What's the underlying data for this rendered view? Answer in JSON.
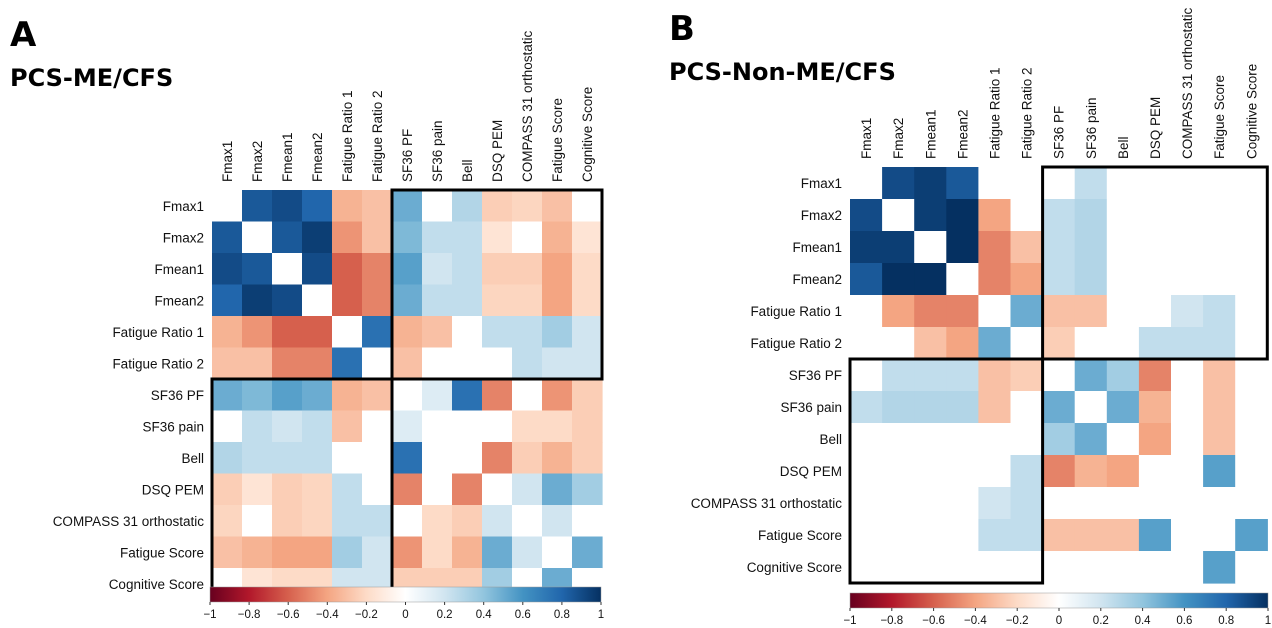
{
  "chart_data": [
    {
      "type": "heatmap",
      "panel": "A",
      "title": "PCS-ME/CFS",
      "labels": [
        "Fmax1",
        "Fmax2",
        "Fmean1",
        "Fmean2",
        "Fatigue Ratio 1",
        "Fatigue Ratio 2",
        "SF36 PF",
        "SF36 pain",
        "Bell",
        "DSQ PEM",
        "COMPASS 31 orthostatic",
        "Fatigue Score",
        "Cognitive Score"
      ],
      "values": [
        [
          0,
          0.85,
          0.9,
          0.8,
          -0.35,
          -0.3,
          0.5,
          0,
          0.3,
          -0.25,
          -0.22,
          -0.3,
          0
        ],
        [
          0.85,
          0,
          0.85,
          0.95,
          -0.45,
          -0.3,
          0.45,
          0.25,
          0.25,
          -0.15,
          0,
          -0.35,
          -0.15
        ],
        [
          0.9,
          0.85,
          0,
          0.9,
          -0.6,
          -0.5,
          0.55,
          0.2,
          0.25,
          -0.25,
          -0.25,
          -0.4,
          -0.2
        ],
        [
          0.8,
          0.95,
          0.9,
          0,
          -0.6,
          -0.5,
          0.5,
          0.25,
          0.25,
          -0.22,
          -0.22,
          -0.4,
          -0.2
        ],
        [
          -0.35,
          -0.45,
          -0.6,
          -0.6,
          0,
          0.75,
          -0.35,
          -0.3,
          0,
          0.25,
          0.25,
          0.35,
          0.2
        ],
        [
          -0.3,
          -0.3,
          -0.5,
          -0.5,
          0.75,
          0,
          -0.3,
          0,
          0,
          0,
          0.25,
          0.2,
          0.2
        ],
        [
          0.5,
          0.45,
          0.55,
          0.5,
          -0.35,
          -0.3,
          0,
          0.15,
          0.75,
          -0.5,
          0,
          -0.45,
          -0.25
        ],
        [
          0,
          0.25,
          0.2,
          0.25,
          -0.3,
          0,
          0.15,
          0,
          0,
          0,
          -0.2,
          -0.2,
          -0.25
        ],
        [
          0.3,
          0.25,
          0.25,
          0.25,
          0,
          0,
          0.75,
          0,
          0,
          -0.5,
          -0.25,
          -0.35,
          -0.25
        ],
        [
          -0.25,
          -0.15,
          -0.25,
          -0.22,
          0.25,
          0,
          -0.5,
          0,
          -0.5,
          0,
          0.2,
          0.5,
          0.35
        ],
        [
          -0.22,
          0,
          -0.25,
          -0.22,
          0.25,
          0.25,
          0,
          -0.2,
          -0.25,
          0.2,
          0,
          0.2,
          0
        ],
        [
          -0.3,
          -0.35,
          -0.4,
          -0.4,
          0.35,
          0.2,
          -0.45,
          -0.2,
          -0.35,
          0.5,
          0.2,
          0,
          0.5
        ],
        [
          0,
          -0.15,
          -0.2,
          -0.2,
          0.2,
          0.2,
          -0.25,
          -0.25,
          -0.25,
          0.35,
          0,
          0.5,
          0
        ]
      ],
      "highlight_boxes": [
        {
          "rows": [
            0,
            5
          ],
          "cols": [
            6,
            12
          ]
        },
        {
          "rows": [
            6,
            12
          ],
          "cols": [
            0,
            5
          ]
        }
      ],
      "colorbar_ticks": [
        "−1",
        "−0.8",
        "−0.6",
        "−0.4",
        "−0.2",
        "0",
        "0.2",
        "0.4",
        "0.6",
        "0.8",
        "1"
      ],
      "vlim": [
        -1,
        1
      ]
    },
    {
      "type": "heatmap",
      "panel": "B",
      "title": "PCS-Non-ME/CFS",
      "labels": [
        "Fmax1",
        "Fmax2",
        "Fmean1",
        "Fmean2",
        "Fatigue Ratio 1",
        "Fatigue Ratio 2",
        "SF36 PF",
        "SF36 pain",
        "Bell",
        "DSQ PEM",
        "COMPASS 31 orthostatic",
        "Fatigue Score",
        "Cognitive Score"
      ],
      "values": [
        [
          0,
          0.9,
          0.95,
          0.85,
          0,
          0,
          0,
          0.25,
          0,
          0,
          0,
          0,
          0
        ],
        [
          0.9,
          0,
          0.95,
          1.0,
          -0.4,
          0,
          0.25,
          0.3,
          0,
          0,
          0,
          0,
          0
        ],
        [
          0.95,
          0.95,
          0,
          1.0,
          -0.5,
          -0.3,
          0.25,
          0.3,
          0,
          0,
          0,
          0,
          0
        ],
        [
          0.85,
          1.0,
          1.0,
          0,
          -0.5,
          -0.4,
          0.25,
          0.3,
          0,
          0,
          0,
          0,
          0
        ],
        [
          0,
          -0.4,
          -0.5,
          -0.5,
          0,
          0.5,
          -0.3,
          -0.3,
          0,
          0,
          0.2,
          0.25,
          0
        ],
        [
          0,
          0,
          -0.3,
          -0.4,
          0.5,
          0,
          -0.25,
          0,
          0,
          0.25,
          0.25,
          0.25,
          0
        ],
        [
          0,
          0.25,
          0.25,
          0.25,
          -0.3,
          -0.25,
          0,
          0.5,
          0.35,
          -0.5,
          0,
          -0.3,
          0
        ],
        [
          0.25,
          0.3,
          0.3,
          0.3,
          -0.3,
          0,
          0.5,
          0,
          0.5,
          -0.35,
          0,
          -0.3,
          0
        ],
        [
          0,
          0,
          0,
          0,
          0,
          0,
          0.35,
          0.5,
          0,
          -0.4,
          0,
          -0.3,
          0
        ],
        [
          0,
          0,
          0,
          0,
          0,
          0.25,
          -0.5,
          -0.35,
          -0.4,
          0,
          0,
          0.55,
          0
        ],
        [
          0,
          0,
          0,
          0,
          0.2,
          0.25,
          0,
          0,
          0,
          0,
          0,
          0,
          0
        ],
        [
          0,
          0,
          0,
          0,
          0.25,
          0.25,
          -0.3,
          -0.3,
          -0.3,
          0.55,
          0,
          0,
          0.55
        ],
        [
          0,
          0,
          0,
          0,
          0,
          0,
          0,
          0,
          0,
          0,
          0,
          0.55,
          0
        ]
      ],
      "highlight_boxes": [
        {
          "rows": [
            0,
            5
          ],
          "cols": [
            6,
            12
          ]
        },
        {
          "rows": [
            6,
            12
          ],
          "cols": [
            0,
            5
          ]
        }
      ],
      "colorbar_ticks": [
        "−1",
        "−0.8",
        "−0.6",
        "−0.4",
        "−0.2",
        "0",
        "0.2",
        "0.4",
        "0.6",
        "0.8",
        "1"
      ],
      "vlim": [
        -1,
        1
      ]
    }
  ]
}
